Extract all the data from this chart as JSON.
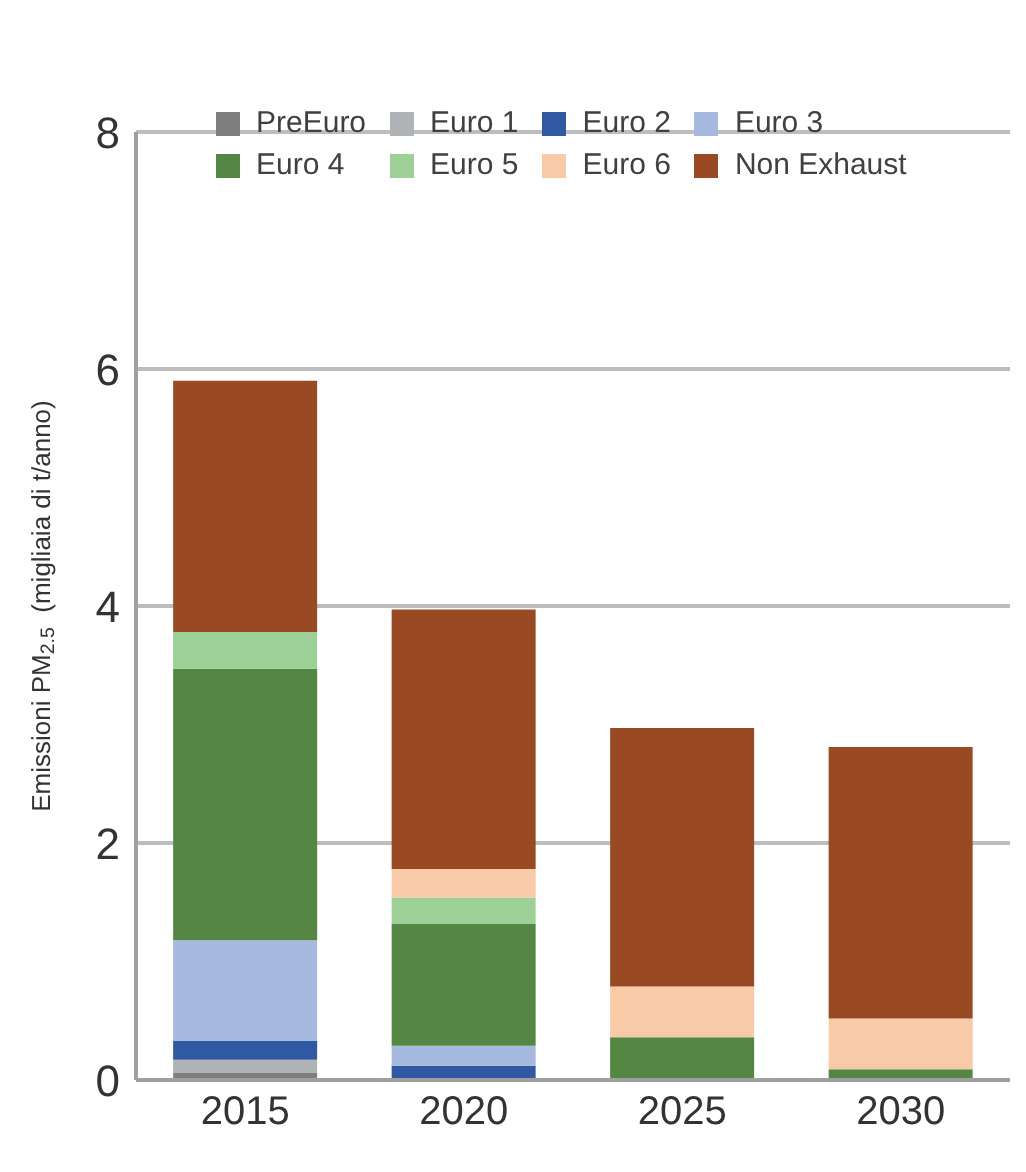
{
  "chart_data": {
    "type": "bar",
    "stacked": true,
    "ylabel": "Emissioni PM$_{2.5}$  (migliaia di t/anno)",
    "categories": [
      "2015",
      "2020",
      "2025",
      "2030"
    ],
    "series": [
      {
        "name": "PreEuro",
        "color": "#7f7f7f",
        "values": [
          0.06,
          0,
          0,
          0
        ]
      },
      {
        "name": "Euro 1",
        "color": "#b0b3b5",
        "values": [
          0.11,
          0,
          0,
          0
        ]
      },
      {
        "name": "Euro 2",
        "color": "#2f5aa3",
        "values": [
          0.16,
          0.12,
          0,
          0
        ]
      },
      {
        "name": "Euro 3",
        "color": "#a6badf",
        "values": [
          0.85,
          0.17,
          0,
          0
        ]
      },
      {
        "name": "Euro 4",
        "color": "#548744",
        "values": [
          2.29,
          1.03,
          0.36,
          0.09
        ]
      },
      {
        "name": "Euro 5",
        "color": "#9cd096",
        "values": [
          0.31,
          0.22,
          0,
          0
        ]
      },
      {
        "name": "Euro 6",
        "color": "#f8caa8",
        "values": [
          0,
          0.24,
          0.43,
          0.43
        ]
      },
      {
        "name": "Non Exhaust",
        "color": "#9a4a22",
        "values": [
          2.12,
          2.19,
          2.18,
          2.29
        ]
      }
    ],
    "ylim": [
      0,
      8
    ],
    "yticks": [
      0,
      2,
      4,
      6,
      8
    ],
    "grid": "y",
    "legend": "top left"
  }
}
